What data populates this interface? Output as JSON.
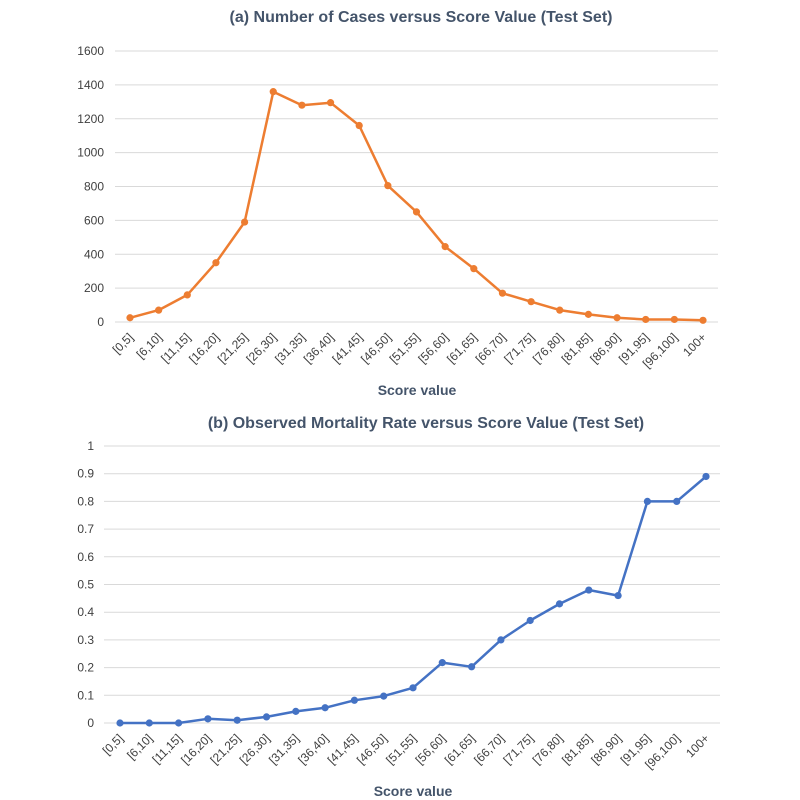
{
  "chart_data": [
    {
      "type": "line",
      "title": "(a) Number of Cases versus Score Value (Test Set)",
      "xlabel": "Score value",
      "ylabel": "",
      "color": "#ed7d31",
      "categories": [
        "[0,5]",
        "[6,10]",
        "[11,15]",
        "[16,20]",
        "[21,25]",
        "[26,30]",
        "[31,35]",
        "[36,40]",
        "[41,45]",
        "[46,50]",
        "[51,55]",
        "[56,60]",
        "[61,65]",
        "[66,70]",
        "[71,75]",
        "[76,80]",
        "[81,85]",
        "[86,90]",
        "[91,95]",
        "[96,100]",
        "100+"
      ],
      "values": [
        25,
        70,
        160,
        350,
        590,
        1360,
        1280,
        1295,
        1160,
        805,
        650,
        445,
        315,
        170,
        120,
        70,
        45,
        25,
        15,
        15,
        10
      ],
      "ylim": [
        0,
        1600
      ],
      "yticks": [
        "0",
        "200",
        "400",
        "600",
        "800",
        "1000",
        "1200",
        "1400",
        "1600"
      ],
      "grid": true
    },
    {
      "type": "line",
      "title": "(b) Observed Mortality Rate versus Score Value (Test Set)",
      "xlabel": "Score value",
      "ylabel": "",
      "color": "#4472c4",
      "categories": [
        "[0,5]",
        "[6,10]",
        "[11,15]",
        "[16,20]",
        "[21,25]",
        "[26,30]",
        "[31,35]",
        "[36,40]",
        "[41,45]",
        "[46,50]",
        "[51,55]",
        "[56,60]",
        "[61,65]",
        "[66,70]",
        "[71,75]",
        "[76,80]",
        "[81,85]",
        "[86,90]",
        "[91,95]",
        "[96,100]",
        "100+"
      ],
      "values": [
        0,
        0,
        0,
        0.015,
        0.01,
        0.022,
        0.042,
        0.055,
        0.082,
        0.097,
        0.127,
        0.218,
        0.203,
        0.3,
        0.37,
        0.43,
        0.48,
        0.46,
        0.8,
        0.8,
        0.89
      ],
      "ylim": [
        0,
        1
      ],
      "yticks": [
        "0",
        "0.1",
        "0.2",
        "0.3",
        "0.4",
        "0.5",
        "0.6",
        "0.7",
        "0.8",
        "0.9",
        "1"
      ],
      "grid": true
    }
  ]
}
